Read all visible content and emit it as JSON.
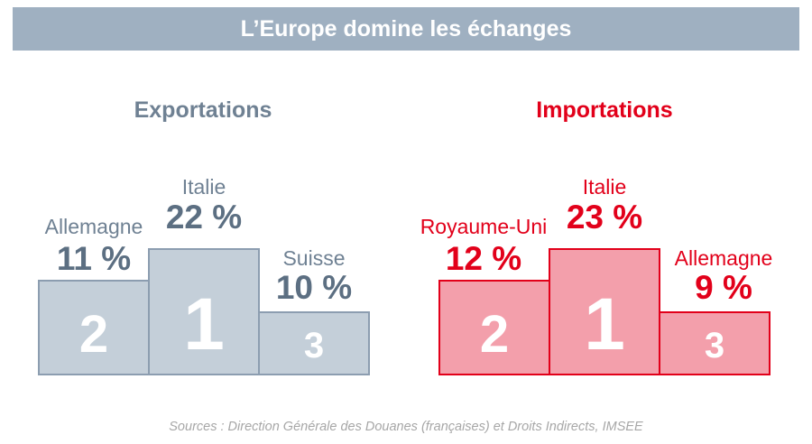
{
  "banner": {
    "title": "L’Europe domine les échanges"
  },
  "chart_data": [
    {
      "type": "bar",
      "title": "Exportations",
      "categories": [
        "Allemagne",
        "Italie",
        "Suisse"
      ],
      "values": [
        11,
        22,
        10
      ],
      "value_labels": [
        "11 %",
        "22 %",
        "10 %"
      ],
      "ranks": [
        "2",
        "1",
        "3"
      ],
      "unit": "%",
      "colors": {
        "title": "#6f8193",
        "fill": "#c4cfd9",
        "border": "#8c9db0"
      }
    },
    {
      "type": "bar",
      "title": "Importations",
      "categories": [
        "Royaume-Uni",
        "Italie",
        "Allemagne"
      ],
      "values": [
        12,
        23,
        9
      ],
      "value_labels": [
        "12 %",
        "23 %",
        "9 %"
      ],
      "ranks": [
        "2",
        "1",
        "3"
      ],
      "unit": "%",
      "colors": {
        "title": "#e2001a",
        "fill": "#f39fab",
        "border": "#e2001a"
      }
    }
  ],
  "source": "Sources : Direction Générale des Douanes (françaises) et Droits Indirects, IMSEE"
}
